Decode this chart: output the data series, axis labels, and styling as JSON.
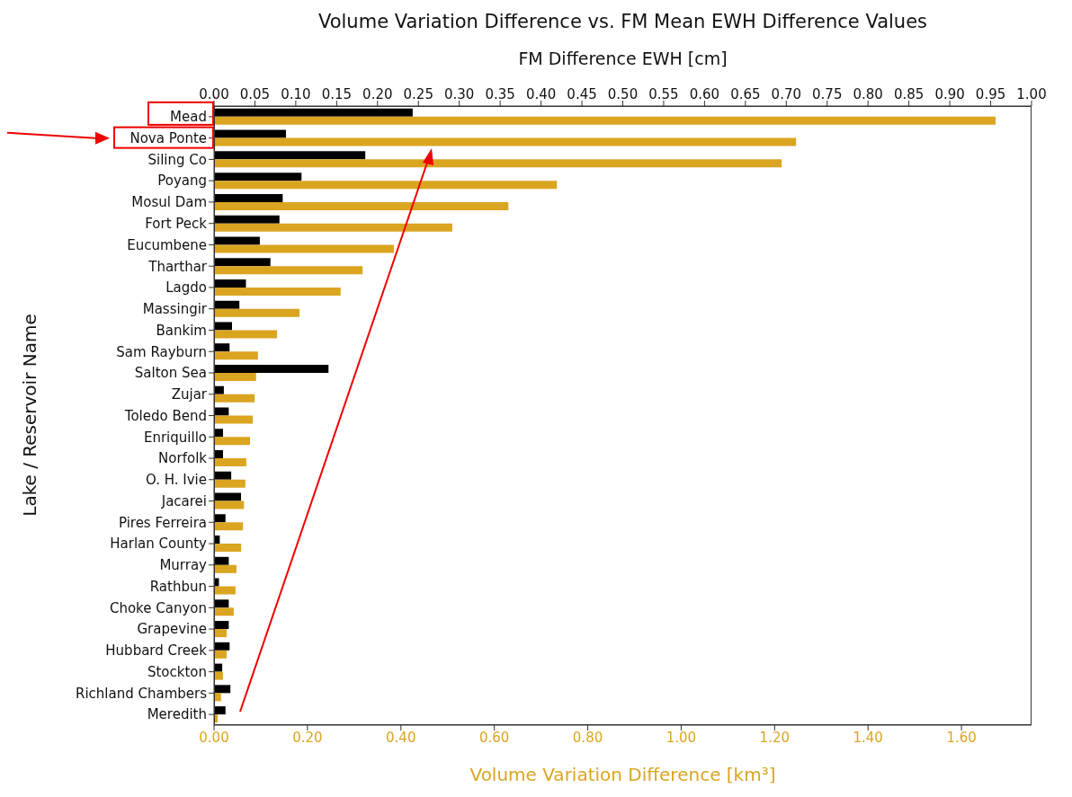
{
  "chart_data": {
    "type": "bar",
    "orientation": "horizontal",
    "title": "Volume Variation Difference vs. FM Mean EWH Difference Values",
    "x2label": "FM Difference EWH [cm]",
    "xlabel": "Volume Variation Difference [km³]",
    "ylabel": "Lake / Reservoir Name",
    "categories": [
      "Mead",
      "Nova Ponte",
      "Siling Co",
      "Poyang",
      "Mosul Dam",
      "Fort Peck",
      "Eucumbene",
      "Tharthar",
      "Lagdo",
      "Massingir",
      "Bankim",
      "Sam Rayburn",
      "Salton Sea",
      "Zujar",
      "Toledo Bend",
      "Enriquillo",
      "Norfolk",
      "O. H. Ivie",
      "Jacarei",
      "Pires Ferreira",
      "Harlan County",
      "Murray",
      "Rathbun",
      "Choke Canyon",
      "Grapevine",
      "Hubbard Creek",
      "Stockton",
      "Richland Chambers",
      "Meredith"
    ],
    "series": [
      {
        "color": "#000000",
        "axis": "x2",
        "values": [
          0.243,
          0.088,
          0.185,
          0.107,
          0.084,
          0.08,
          0.056,
          0.069,
          0.039,
          0.031,
          0.022,
          0.019,
          0.14,
          0.012,
          0.018,
          0.011,
          0.011,
          0.021,
          0.033,
          0.014,
          0.007,
          0.018,
          0.006,
          0.018,
          0.018,
          0.019,
          0.01,
          0.02,
          0.014
        ]
      },
      {
        "color": "#daa520",
        "values": [
          1.673,
          1.246,
          1.215,
          0.734,
          0.63,
          0.51,
          0.385,
          0.318,
          0.271,
          0.183,
          0.135,
          0.094,
          0.09,
          0.087,
          0.083,
          0.077,
          0.069,
          0.067,
          0.064,
          0.062,
          0.058,
          0.048,
          0.046,
          0.042,
          0.027,
          0.027,
          0.019,
          0.015,
          0.008
        ]
      }
    ],
    "xlim": [
      0,
      1.75
    ],
    "xticks": [
      {
        "value": 0,
        "label": "0.00"
      },
      {
        "value": 0.2,
        "label": "0.20"
      },
      {
        "value": 0.4,
        "label": "0.40"
      },
      {
        "value": 0.6,
        "label": "0.60"
      },
      {
        "value": 0.8,
        "label": "0.80"
      },
      {
        "value": 1,
        "label": "1.00"
      },
      {
        "value": 1.2,
        "label": "1.20"
      },
      {
        "value": 1.4,
        "label": "1.40"
      },
      {
        "value": 1.6,
        "label": "1.60"
      }
    ],
    "x2lim": [
      0,
      1
    ],
    "x2ticks": [
      {
        "value": 0,
        "label": "0.00"
      },
      {
        "value": 0.05,
        "label": "0.05"
      },
      {
        "value": 0.1,
        "label": "0.10"
      },
      {
        "value": 0.15,
        "label": "0.15"
      },
      {
        "value": 0.2,
        "label": "0.20"
      },
      {
        "value": 0.25,
        "label": "0.25"
      },
      {
        "value": 0.3,
        "label": "0.30"
      },
      {
        "value": 0.35,
        "label": "0.35"
      },
      {
        "value": 0.4,
        "label": "0.40"
      },
      {
        "value": 0.45,
        "label": "0.45"
      },
      {
        "value": 0.5,
        "label": "0.50"
      },
      {
        "value": 0.55,
        "label": "0.55"
      },
      {
        "value": 0.6,
        "label": "0.60"
      },
      {
        "value": 0.65,
        "label": "0.65"
      },
      {
        "value": 0.7,
        "label": "0.70"
      },
      {
        "value": 0.75,
        "label": "0.75"
      },
      {
        "value": 0.8,
        "label": "0.80"
      },
      {
        "value": 0.85,
        "label": "0.85"
      },
      {
        "value": 0.9,
        "label": "0.90"
      },
      {
        "value": 0.95,
        "label": "0.95"
      },
      {
        "value": 1,
        "label": "1.00"
      }
    ]
  }
}
